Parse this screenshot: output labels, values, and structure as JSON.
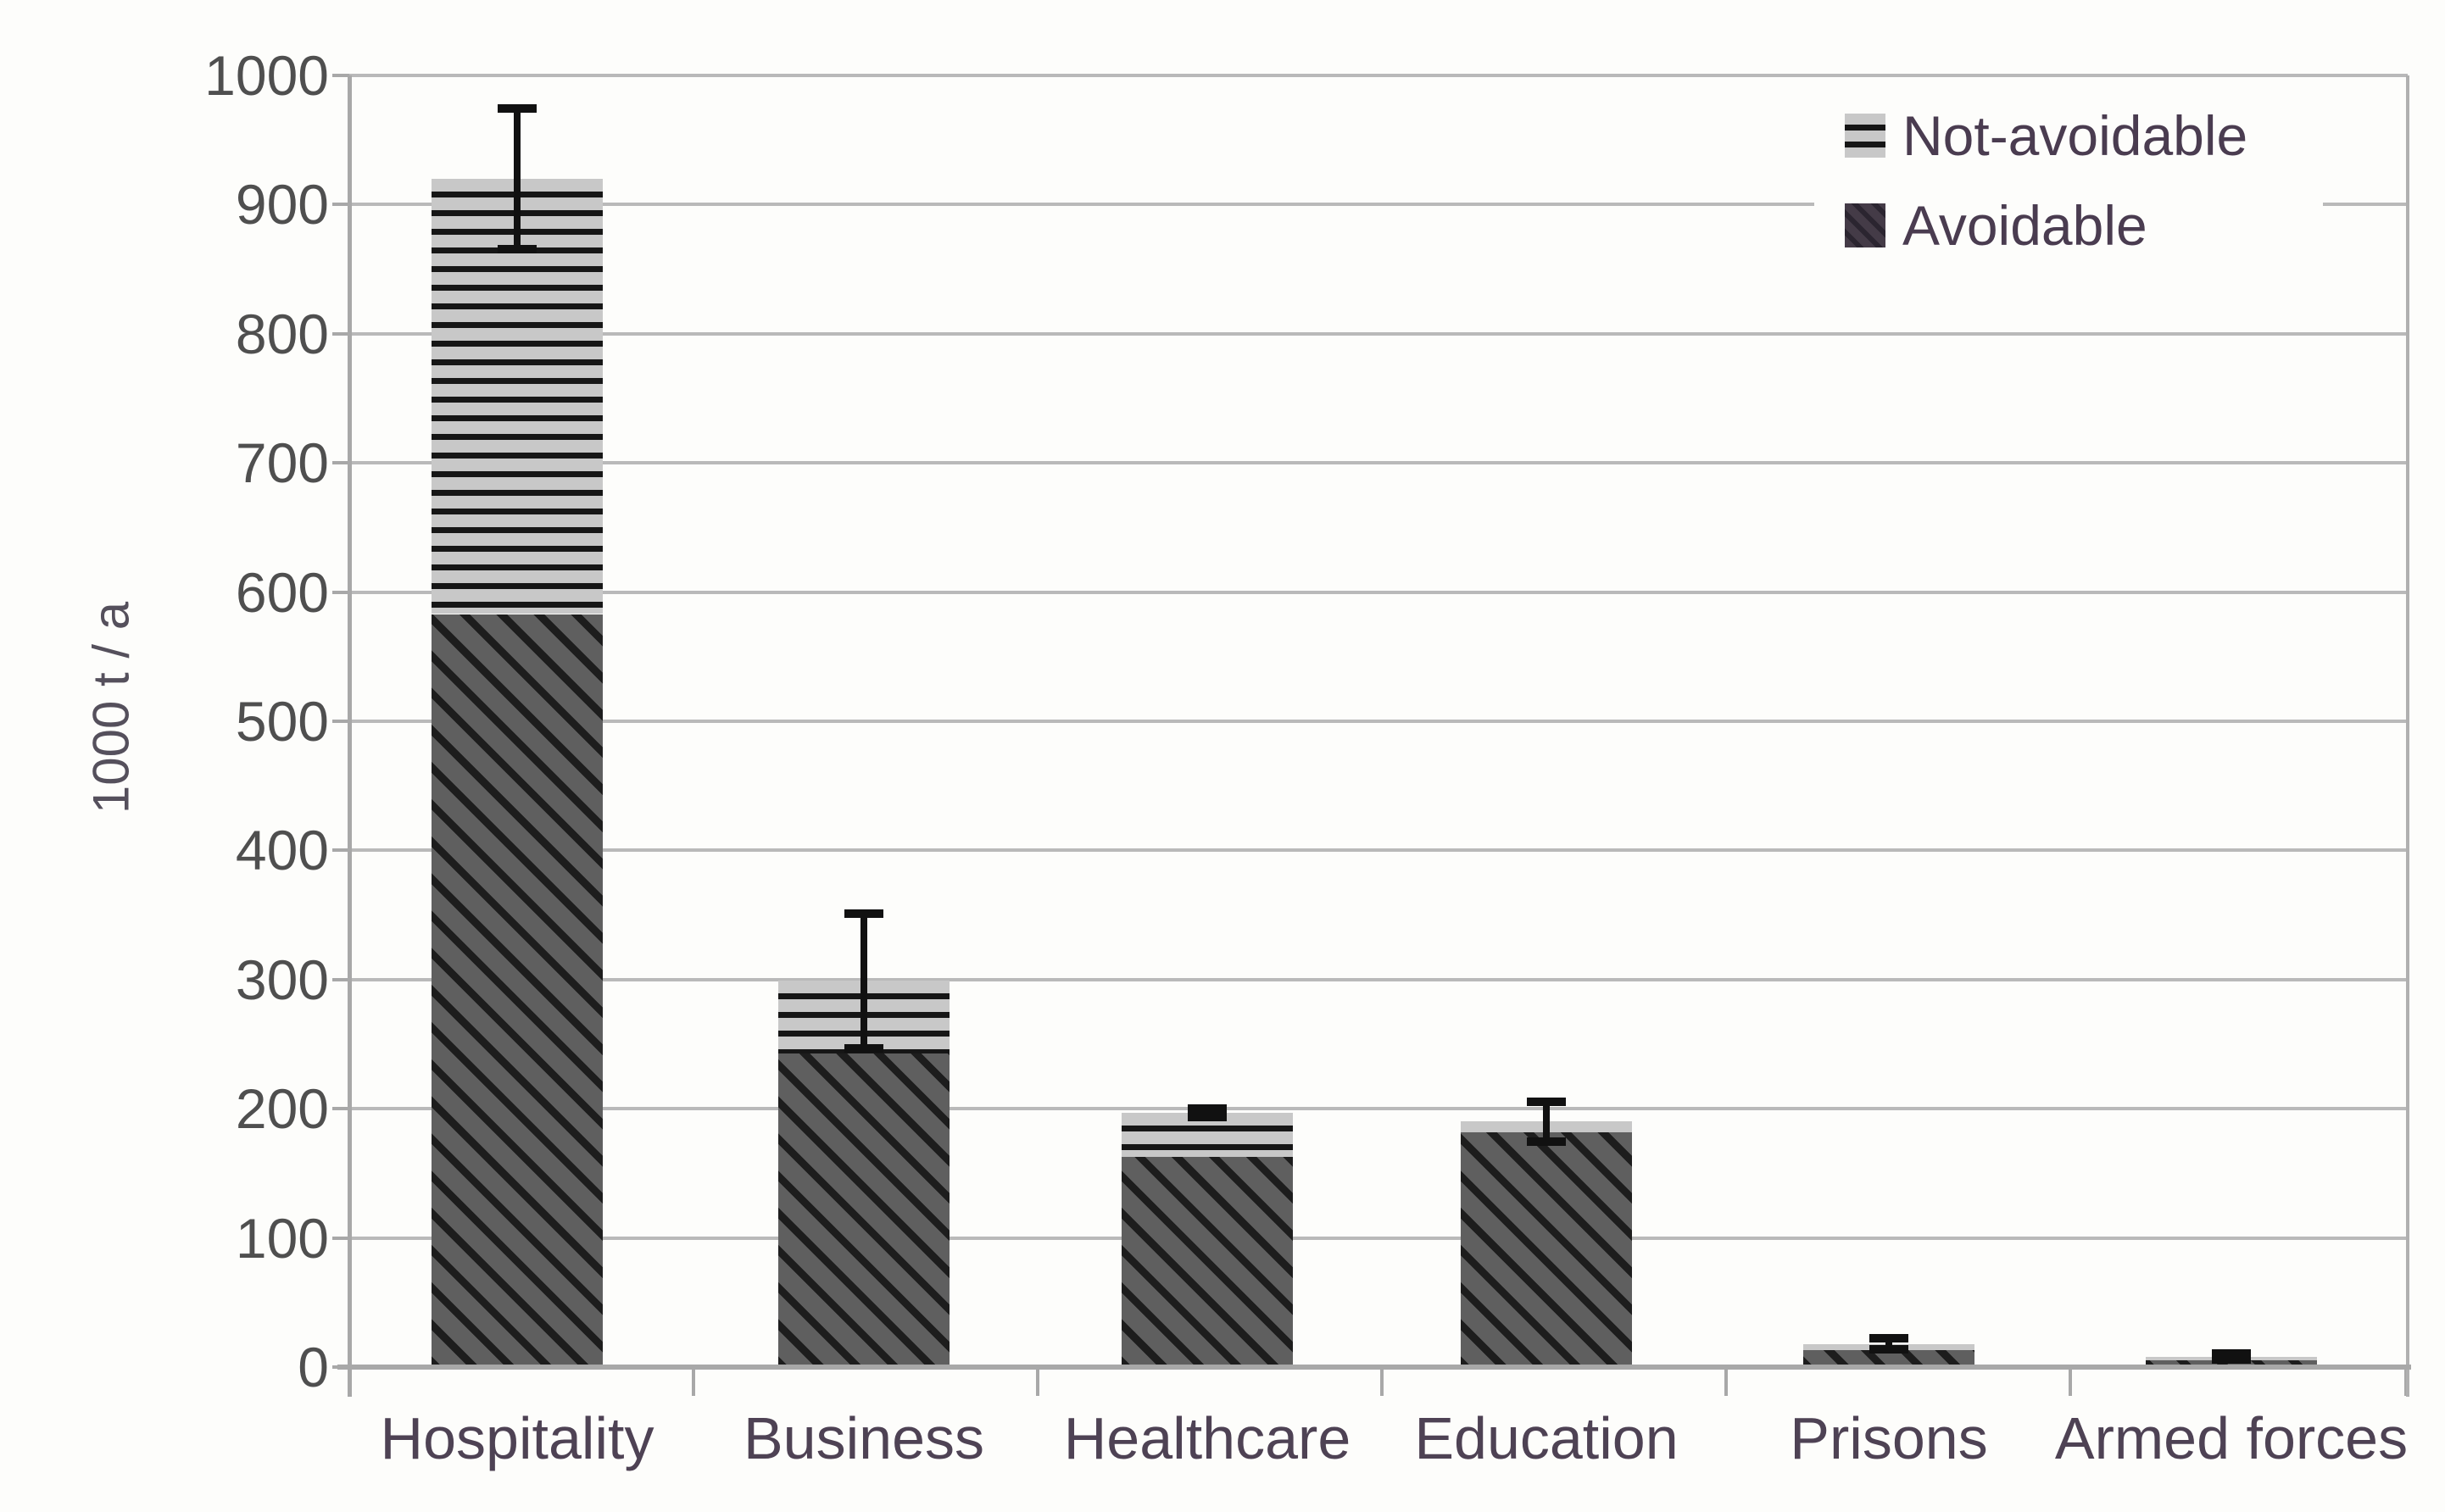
{
  "chart_data": {
    "type": "bar",
    "stacked": true,
    "title": "",
    "ylabel": "1000 t / a",
    "xlabel": "",
    "ylim": [
      0,
      1000
    ],
    "ytick_step": 100,
    "ytick_labels": [
      "0",
      "100",
      "200",
      "300",
      "400",
      "500",
      "600",
      "700",
      "800",
      "900",
      "1000"
    ],
    "categories": [
      "Hospitality",
      "Business",
      "Healthcare",
      "Education",
      "Prisons",
      "Armed forces"
    ],
    "series": [
      {
        "name": "Avoidable",
        "pattern": "diagonal-hatch",
        "values": [
          583,
          243,
          163,
          182,
          13,
          5
        ]
      },
      {
        "name": "Not-avoidable",
        "pattern": "horizontal-lines",
        "values": [
          337,
          56,
          34,
          8,
          5,
          3
        ]
      }
    ],
    "stack_totals": [
      920,
      299,
      197,
      190,
      18,
      8
    ],
    "error_bars": {
      "type": "symmetric",
      "plus_minus": [
        55,
        53,
        4,
        16,
        5,
        3
      ]
    },
    "legend": {
      "position": "top-right",
      "entries": [
        {
          "label": "Not-avoidable",
          "swatch": "horizontal-lines"
        },
        {
          "label": "Avoidable",
          "swatch": "diagonal-hatch"
        }
      ]
    },
    "grid": "horizontal",
    "colors": {
      "avoidable_fill": "#5f5f5f",
      "avoidable_hatch_line": "#1d1d1d",
      "not_avoidable_fill": "#c8c8c8",
      "not_avoidable_hatch_line": "#161616",
      "gridline": "#b9b9b9",
      "axis_line": "#a8a8a8",
      "error_bar": "#111111",
      "ytick_label_text": "#4f4f4f",
      "category_label_text": "#4e4254",
      "legend_text": "#4a3c50",
      "background": "#fdfdfb"
    }
  }
}
